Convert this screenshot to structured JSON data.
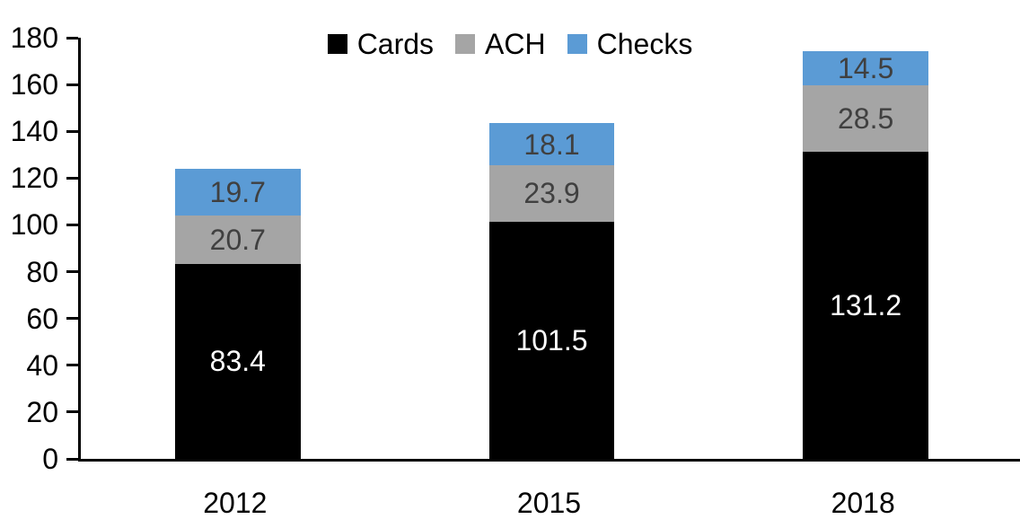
{
  "chart_data": {
    "type": "bar",
    "stacked": true,
    "title": "",
    "xlabel": "",
    "ylabel": "",
    "categories": [
      "2012",
      "2015",
      "2018"
    ],
    "series": [
      {
        "name": "Cards",
        "color": "#000000",
        "label_color": "#FFFFFF",
        "values": [
          83.4,
          101.5,
          131.2
        ]
      },
      {
        "name": "ACH",
        "color": "#A5A5A5",
        "label_color": "#404040",
        "values": [
          20.7,
          23.9,
          28.5
        ]
      },
      {
        "name": "Checks",
        "color": "#5B9BD5",
        "label_color": "#404040",
        "values": [
          19.7,
          18.1,
          14.5
        ]
      }
    ],
    "ylim": [
      0,
      180
    ],
    "ytick_step": 20,
    "yticks": [
      0,
      20,
      40,
      60,
      80,
      100,
      120,
      140,
      160,
      180
    ],
    "grid": false,
    "legend_position": "top-center",
    "legend_labels": [
      "Cards",
      "ACH",
      "Checks"
    ],
    "data_labels": true,
    "data_label_decimals": 1,
    "axis_color": "#000000",
    "tick_label_color": "#000000",
    "background": "#FFFFFF",
    "bar_gap_ratio": 0.4
  }
}
